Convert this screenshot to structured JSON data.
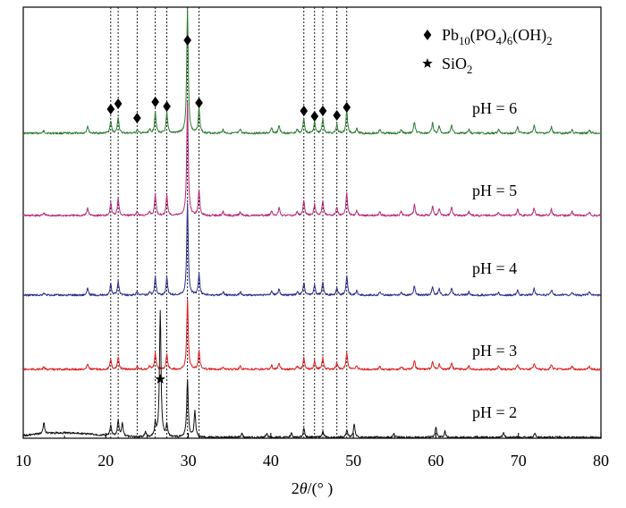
{
  "chart_data": {
    "type": "line",
    "xlabel": "2θ/(° )",
    "xlim": [
      10,
      80
    ],
    "x_ticks": [
      10,
      20,
      30,
      40,
      50,
      60,
      70,
      80
    ],
    "y_scale": "stacked, offset traces, no y axis labels",
    "grid": false,
    "legend": {
      "placement": "top-right",
      "entries": [
        {
          "marker": "diamond",
          "label": "Pb10(PO4)6(OH)2"
        },
        {
          "marker": "star",
          "label": "SiO2"
        }
      ]
    },
    "reference_lines_x": [
      20.6,
      21.5,
      23.8,
      26.0,
      27.4,
      29.9,
      31.3,
      44.0,
      45.3,
      46.3,
      48.0,
      49.2
    ],
    "diamond_markers_x": [
      20.6,
      21.5,
      23.8,
      26.0,
      27.4,
      29.9,
      31.3,
      44.0,
      45.3,
      46.3,
      48.0,
      49.2
    ],
    "star_marker_x": 26.6,
    "peaks": [
      {
        "x": 12.5,
        "h": 0.02
      },
      {
        "x": 17.8,
        "h": 0.06
      },
      {
        "x": 20.6,
        "h": 0.1
      },
      {
        "x": 21.5,
        "h": 0.13
      },
      {
        "x": 23.8,
        "h": 0.03
      },
      {
        "x": 25.3,
        "h": 0.03
      },
      {
        "x": 26.0,
        "h": 0.17
      },
      {
        "x": 27.4,
        "h": 0.16
      },
      {
        "x": 29.9,
        "h": 1.0
      },
      {
        "x": 31.3,
        "h": 0.2
      },
      {
        "x": 34.2,
        "h": 0.03
      },
      {
        "x": 36.3,
        "h": 0.03
      },
      {
        "x": 40.1,
        "h": 0.04
      },
      {
        "x": 41.0,
        "h": 0.06
      },
      {
        "x": 43.2,
        "h": 0.03
      },
      {
        "x": 44.0,
        "h": 0.12
      },
      {
        "x": 45.3,
        "h": 0.09
      },
      {
        "x": 46.3,
        "h": 0.12
      },
      {
        "x": 48.0,
        "h": 0.07
      },
      {
        "x": 49.2,
        "h": 0.18
      },
      {
        "x": 50.4,
        "h": 0.04
      },
      {
        "x": 53.2,
        "h": 0.03
      },
      {
        "x": 55.8,
        "h": 0.03
      },
      {
        "x": 57.4,
        "h": 0.09
      },
      {
        "x": 59.6,
        "h": 0.08
      },
      {
        "x": 60.4,
        "h": 0.06
      },
      {
        "x": 61.9,
        "h": 0.07
      },
      {
        "x": 64.0,
        "h": 0.03
      },
      {
        "x": 67.6,
        "h": 0.03
      },
      {
        "x": 69.9,
        "h": 0.05
      },
      {
        "x": 71.9,
        "h": 0.06
      },
      {
        "x": 74.0,
        "h": 0.05
      },
      {
        "x": 76.5,
        "h": 0.03
      },
      {
        "x": 78.6,
        "h": 0.03
      }
    ],
    "series": [
      {
        "label": "pH = 6",
        "color": "#2e7d32",
        "main_peak": 1.0
      },
      {
        "label": "pH = 5",
        "color": "#b8287a",
        "main_peak": 0.9
      },
      {
        "label": "pH = 4",
        "color": "#2c2c8c",
        "main_peak": 0.85
      },
      {
        "label": "pH = 3",
        "color": "#e02020",
        "main_peak": 0.72
      },
      {
        "label": "pH = 2",
        "color": "#111111",
        "main_peak": 0.25,
        "peaks": [
          {
            "x": 12.5,
            "h": 0.09
          },
          {
            "x": 20.6,
            "h": 0.08
          },
          {
            "x": 21.5,
            "h": 0.12
          },
          {
            "x": 22.0,
            "h": 0.1
          },
          {
            "x": 24.8,
            "h": 0.04
          },
          {
            "x": 26.0,
            "h": 0.1
          },
          {
            "x": 26.6,
            "h": 1.0
          },
          {
            "x": 27.4,
            "h": 0.1
          },
          {
            "x": 29.9,
            "h": 0.45
          },
          {
            "x": 30.8,
            "h": 0.2
          },
          {
            "x": 36.5,
            "h": 0.03
          },
          {
            "x": 39.5,
            "h": 0.03
          },
          {
            "x": 42.5,
            "h": 0.03
          },
          {
            "x": 44.0,
            "h": 0.07
          },
          {
            "x": 46.3,
            "h": 0.05
          },
          {
            "x": 49.2,
            "h": 0.06
          },
          {
            "x": 50.1,
            "h": 0.1
          },
          {
            "x": 54.9,
            "h": 0.03
          },
          {
            "x": 60.0,
            "h": 0.08
          },
          {
            "x": 61.1,
            "h": 0.05
          },
          {
            "x": 68.2,
            "h": 0.04
          },
          {
            "x": 72.0,
            "h": 0.03
          }
        ],
        "hump": {
          "center": 15,
          "width": 5.5,
          "height": 0.035
        }
      }
    ]
  }
}
